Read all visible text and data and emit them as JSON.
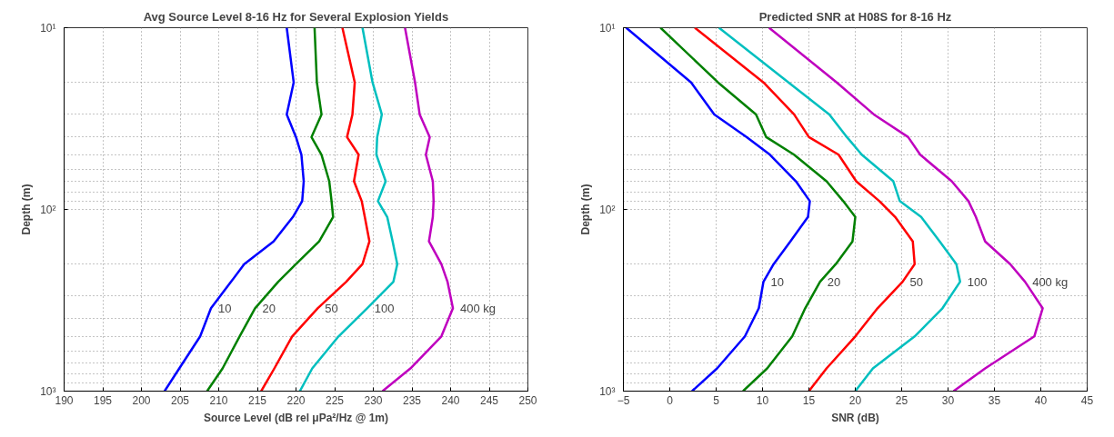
{
  "chart_data": [
    {
      "type": "line",
      "title": "Avg Source Level 8-16 Hz for Several Explosion Yields",
      "xlabel": "Source Level (dB rel μPa²/Hz @ 1m)",
      "ylabel": "Depth (m)",
      "log": "y",
      "grid": true,
      "marker": "none",
      "line_style": "solid",
      "xlim": [
        190,
        250
      ],
      "xticks": [
        190,
        195,
        200,
        205,
        210,
        215,
        220,
        225,
        230,
        235,
        240,
        245,
        250
      ],
      "ylim": [
        1000,
        10
      ],
      "yticks": [
        {
          "value": 10,
          "label": "10¹"
        },
        {
          "value": 100,
          "label": "10²"
        },
        {
          "value": 1000,
          "label": "10³"
        }
      ],
      "series": [
        {
          "name": "10",
          "color": "#0000ff",
          "x": [
            218.8,
            219.7,
            218.8,
            220.0,
            220.7,
            221.0,
            220.8,
            219.6,
            217.1,
            213.3,
            211.6,
            209.0,
            207.6,
            204.9,
            203.0
          ],
          "values": [
            10,
            20,
            30,
            40,
            50,
            70,
            90,
            110,
            150,
            200,
            250,
            350,
            500,
            750,
            1000
          ]
        },
        {
          "name": "20",
          "color": "#008000",
          "x": [
            222.4,
            222.7,
            223.3,
            222.0,
            223.3,
            224.3,
            224.6,
            224.8,
            223.0,
            220.0,
            217.7,
            214.7,
            212.7,
            210.5,
            208.5
          ],
          "values": [
            10,
            20,
            30,
            40,
            50,
            70,
            90,
            110,
            150,
            200,
            250,
            350,
            500,
            750,
            1000
          ]
        },
        {
          "name": "50",
          "color": "#ff0000",
          "x": [
            226.0,
            227.6,
            227.3,
            226.6,
            228.1,
            227.5,
            228.5,
            228.9,
            229.5,
            228.6,
            226.5,
            222.8,
            219.5,
            217.2,
            215.5
          ],
          "values": [
            10,
            20,
            30,
            40,
            50,
            70,
            90,
            110,
            150,
            200,
            250,
            350,
            500,
            750,
            1000
          ]
        },
        {
          "name": "100",
          "color": "#00bfbf",
          "x": [
            228.6,
            229.9,
            231.1,
            230.5,
            230.4,
            231.6,
            230.6,
            231.8,
            232.5,
            233.1,
            232.6,
            229.2,
            225.5,
            222.1,
            220.5
          ],
          "values": [
            10,
            20,
            30,
            40,
            50,
            70,
            90,
            110,
            150,
            200,
            250,
            350,
            500,
            750,
            1000
          ]
        },
        {
          "name": "400 kg",
          "color": "#bf00bf",
          "x": [
            234.1,
            235.4,
            236.0,
            237.3,
            236.8,
            237.7,
            237.8,
            237.7,
            237.2,
            238.8,
            239.6,
            240.3,
            238.8,
            234.8,
            231.2
          ],
          "values": [
            10,
            20,
            30,
            40,
            50,
            70,
            90,
            110,
            150,
            200,
            250,
            350,
            500,
            750,
            1000
          ]
        }
      ]
    },
    {
      "type": "line",
      "title": "Predicted SNR at H08S for 8-16 Hz",
      "xlabel": "SNR (dB)",
      "ylabel": "Depth (m)",
      "log": "y",
      "grid": true,
      "marker": "none",
      "line_style": "solid",
      "xlim": [
        -5,
        45
      ],
      "xticks": [
        -5,
        0,
        5,
        10,
        15,
        20,
        25,
        30,
        35,
        40,
        45
      ],
      "ylim": [
        1000,
        10
      ],
      "yticks": [
        {
          "value": 10,
          "label": "10¹"
        },
        {
          "value": 100,
          "label": "10²"
        },
        {
          "value": 1000,
          "label": "10³"
        }
      ],
      "series": [
        {
          "name": "10",
          "color": "#0000ff",
          "x": [
            -4.7,
            2.3,
            4.8,
            8.3,
            10.8,
            13.6,
            15.1,
            14.9,
            13.0,
            11.2,
            10.1,
            9.6,
            8.1,
            5.1,
            2.4
          ],
          "values": [
            10,
            20,
            30,
            40,
            50,
            70,
            90,
            110,
            150,
            200,
            250,
            350,
            500,
            750,
            1000
          ]
        },
        {
          "name": "20",
          "color": "#008000",
          "x": [
            -1.0,
            5.2,
            9.3,
            10.4,
            13.4,
            16.9,
            18.7,
            20.0,
            19.7,
            17.9,
            16.2,
            14.6,
            13.2,
            10.5,
            7.9
          ],
          "values": [
            10,
            20,
            30,
            40,
            50,
            70,
            90,
            110,
            150,
            200,
            250,
            350,
            500,
            750,
            1000
          ]
        },
        {
          "name": "50",
          "color": "#ff0000",
          "x": [
            2.7,
            10.1,
            13.4,
            15.0,
            18.2,
            20.1,
            22.6,
            24.3,
            26.2,
            26.4,
            25.1,
            22.4,
            20.0,
            16.9,
            15.0
          ],
          "values": [
            10,
            20,
            30,
            40,
            50,
            70,
            90,
            110,
            150,
            200,
            250,
            350,
            500,
            750,
            1000
          ]
        },
        {
          "name": "100",
          "color": "#00bfbf",
          "x": [
            5.3,
            12.8,
            17.2,
            19.1,
            20.7,
            24.1,
            24.8,
            27.1,
            29.1,
            30.9,
            31.3,
            29.4,
            26.4,
            21.9,
            20.0
          ],
          "values": [
            10,
            20,
            30,
            40,
            50,
            70,
            90,
            110,
            150,
            200,
            250,
            350,
            500,
            750,
            1000
          ]
        },
        {
          "name": "400 kg",
          "color": "#bf00bf",
          "x": [
            10.7,
            18.0,
            22.0,
            25.7,
            27.0,
            30.4,
            32.2,
            33.0,
            34.0,
            36.7,
            38.3,
            40.2,
            39.3,
            34.0,
            30.6
          ],
          "values": [
            10,
            20,
            30,
            40,
            50,
            70,
            90,
            110,
            150,
            200,
            250,
            350,
            500,
            750,
            1000
          ]
        }
      ]
    }
  ]
}
